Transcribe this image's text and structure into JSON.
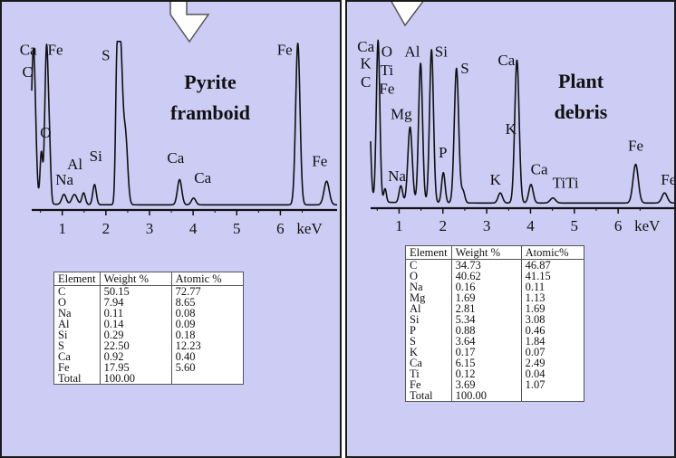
{
  "chart_data": [
    {
      "type": "line",
      "title": "Pyrite framboid",
      "title_lines": [
        "Pyrite",
        "framboid"
      ],
      "xlabel": "keV",
      "xlim": [
        0.3,
        7.3
      ],
      "x_ticks": [
        1,
        2,
        3,
        4,
        5,
        6
      ],
      "ylim": [
        0,
        100
      ],
      "spectrum": {
        "baseline": 2,
        "peaks": [
          {
            "x": 0.34,
            "y": 92,
            "w": 0.05
          },
          {
            "x": 0.52,
            "y": 30,
            "w": 0.03
          },
          {
            "x": 0.64,
            "y": 93,
            "w": 0.04
          },
          {
            "x": 0.71,
            "y": 25,
            "w": 0.03
          },
          {
            "x": 1.04,
            "y": 6,
            "w": 0.05
          },
          {
            "x": 1.28,
            "y": 6,
            "w": 0.06
          },
          {
            "x": 1.49,
            "y": 7,
            "w": 0.04
          },
          {
            "x": 1.74,
            "y": 12,
            "w": 0.04
          },
          {
            "x": 2.25,
            "y": 66,
            "w": 0.03
          },
          {
            "x": 2.33,
            "y": 96,
            "w": 0.05
          },
          {
            "x": 2.45,
            "y": 40,
            "w": 0.05
          },
          {
            "x": 3.69,
            "y": 15,
            "w": 0.05
          },
          {
            "x": 4.01,
            "y": 4,
            "w": 0.05
          },
          {
            "x": 6.4,
            "y": 96,
            "w": 0.05
          },
          {
            "x": 7.06,
            "y": 14,
            "w": 0.06
          }
        ]
      },
      "peak_labels": [
        {
          "text": "Ca",
          "x": 0.22,
          "y": 91
        },
        {
          "text": "C",
          "x": 0.2,
          "y": 78
        },
        {
          "text": "Fe",
          "x": 0.84,
          "y": 91
        },
        {
          "text": "S",
          "x": 2.0,
          "y": 88
        },
        {
          "text": "O",
          "x": 0.62,
          "y": 42
        },
        {
          "text": "Al",
          "x": 1.29,
          "y": 23
        },
        {
          "text": "Si",
          "x": 1.77,
          "y": 28
        },
        {
          "text": "Na",
          "x": 1.05,
          "y": 14
        },
        {
          "text": "Ca",
          "x": 3.6,
          "y": 27
        },
        {
          "text": "Ca",
          "x": 4.22,
          "y": 15
        },
        {
          "text": "Fe",
          "x": 6.1,
          "y": 91
        },
        {
          "text": "Fe",
          "x": 6.9,
          "y": 25
        }
      ],
      "table": {
        "headers": [
          "Element",
          "Weight %",
          "Atomic %"
        ],
        "rows": [
          [
            "C",
            "50.15",
            "72.77"
          ],
          [
            "O",
            "7.94",
            "8.65"
          ],
          [
            "Na",
            "0.11",
            "0.08"
          ],
          [
            "Al",
            "0.14",
            "0.09"
          ],
          [
            "Si",
            "0.29",
            "0.18"
          ],
          [
            "S",
            "22.50",
            "12.23"
          ],
          [
            "Ca",
            "0.92",
            "0.40"
          ],
          [
            "Fe",
            "17.95",
            "5.60"
          ],
          [
            "Total",
            "100.00",
            ""
          ]
        ]
      }
    },
    {
      "type": "line",
      "title": "Plant debris",
      "title_lines": [
        "Plant",
        "debris"
      ],
      "xlabel": "keV",
      "xlim": [
        0.35,
        7.3
      ],
      "x_ticks": [
        1,
        2,
        3,
        4,
        5,
        6
      ],
      "ylim": [
        0,
        100
      ],
      "spectrum": {
        "baseline": 2,
        "peaks": [
          {
            "x": 0.28,
            "y": 95,
            "w": 0.05
          },
          {
            "x": 0.52,
            "y": 96,
            "w": 0.04
          },
          {
            "x": 0.68,
            "y": 8,
            "w": 0.03
          },
          {
            "x": 1.04,
            "y": 10,
            "w": 0.04
          },
          {
            "x": 1.25,
            "y": 45,
            "w": 0.05
          },
          {
            "x": 1.49,
            "y": 83,
            "w": 0.045
          },
          {
            "x": 1.74,
            "y": 91,
            "w": 0.045
          },
          {
            "x": 2.01,
            "y": 18,
            "w": 0.04
          },
          {
            "x": 2.31,
            "y": 80,
            "w": 0.05
          },
          {
            "x": 2.46,
            "y": 7,
            "w": 0.04
          },
          {
            "x": 3.31,
            "y": 6,
            "w": 0.05
          },
          {
            "x": 3.69,
            "y": 85,
            "w": 0.05
          },
          {
            "x": 4.01,
            "y": 11,
            "w": 0.05
          },
          {
            "x": 4.51,
            "y": 3,
            "w": 0.06
          },
          {
            "x": 6.4,
            "y": 23,
            "w": 0.06
          },
          {
            "x": 7.06,
            "y": 6,
            "w": 0.06
          }
        ]
      },
      "peak_labels": [
        {
          "text": "Ca",
          "x": 0.24,
          "y": 92
        },
        {
          "text": "K",
          "x": 0.24,
          "y": 82
        },
        {
          "text": "C",
          "x": 0.24,
          "y": 71
        },
        {
          "text": "O",
          "x": 0.72,
          "y": 89
        },
        {
          "text": "Ti",
          "x": 0.72,
          "y": 78
        },
        {
          "text": "Fe",
          "x": 0.72,
          "y": 67
        },
        {
          "text": "Mg",
          "x": 1.05,
          "y": 52
        },
        {
          "text": "Al",
          "x": 1.3,
          "y": 89
        },
        {
          "text": "Si",
          "x": 1.96,
          "y": 89
        },
        {
          "text": "S",
          "x": 2.5,
          "y": 79
        },
        {
          "text": "Na",
          "x": 0.95,
          "y": 15
        },
        {
          "text": "P",
          "x": 2.0,
          "y": 29
        },
        {
          "text": "Ca",
          "x": 3.45,
          "y": 84
        },
        {
          "text": "K",
          "x": 3.55,
          "y": 43
        },
        {
          "text": "K",
          "x": 3.2,
          "y": 13
        },
        {
          "text": "Ca",
          "x": 4.2,
          "y": 19
        },
        {
          "text": "TiTi",
          "x": 4.8,
          "y": 11
        },
        {
          "text": "Fe",
          "x": 6.4,
          "y": 33
        },
        {
          "text": "Fe",
          "x": 7.15,
          "y": 13
        }
      ],
      "table": {
        "headers": [
          "Element",
          "Weight %",
          "Atomic%"
        ],
        "rows": [
          [
            "C",
            "34.73",
            "46.87"
          ],
          [
            "O",
            "40.62",
            "41.15"
          ],
          [
            "Na",
            "0.16",
            "0.11"
          ],
          [
            "Mg",
            "1.69",
            "1.13"
          ],
          [
            "Al",
            "2.81",
            "1.69"
          ],
          [
            "Si",
            "5.34",
            "3.08"
          ],
          [
            "P",
            "0.88",
            "0.46"
          ],
          [
            "S",
            "3.64",
            "1.84"
          ],
          [
            "K",
            "0.17",
            "0.07"
          ],
          [
            "Ca",
            "6.15",
            "2.49"
          ],
          [
            "Ti",
            "0.12",
            "0.04"
          ],
          [
            "Fe",
            "3.69",
            "1.07"
          ],
          [
            "Total",
            "100.00",
            ""
          ]
        ]
      }
    }
  ],
  "colors": {
    "panel_bg": "#ccccf4",
    "panel_border": "#1a1a1a",
    "spectrum_line": "#111111",
    "arrow_fill": "#ffffff",
    "arrow_stroke": "#555555"
  }
}
